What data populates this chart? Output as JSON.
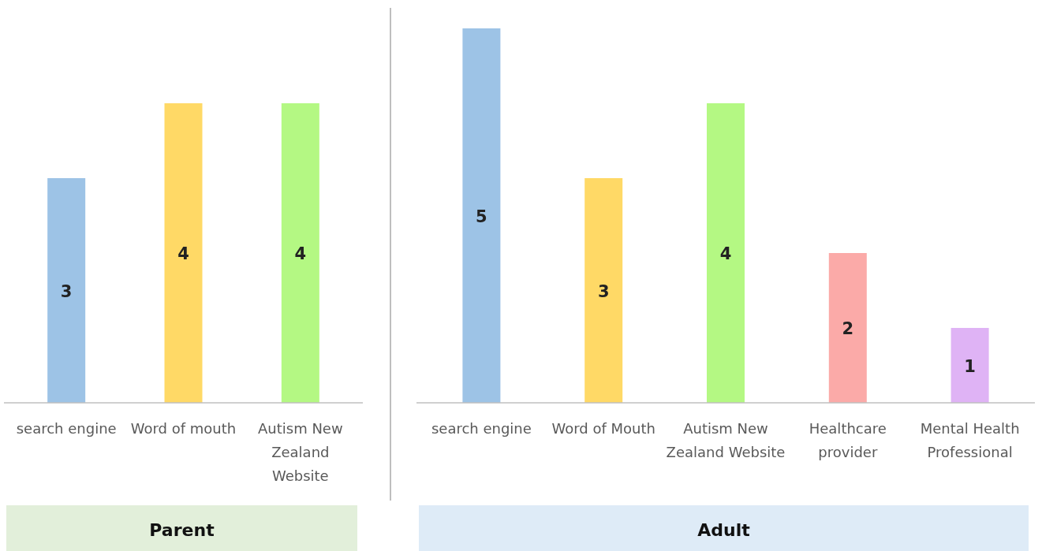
{
  "chart_data": [
    {
      "type": "bar",
      "title": "Parent",
      "categories": [
        "search engine",
        "Word of mouth",
        "Autism New Zealand Website"
      ],
      "values": [
        3,
        4,
        4
      ],
      "colors": [
        "#9dc3e6",
        "#ffd966",
        "#b4f883"
      ],
      "data_labels": true
    },
    {
      "type": "bar",
      "title": "Adult",
      "categories": [
        "search engine",
        "Word of Mouth",
        "Autism New Zealand Website",
        "Healthcare provider",
        "Mental Health Professional"
      ],
      "values": [
        5,
        3,
        4,
        2,
        1
      ],
      "colors": [
        "#9dc3e6",
        "#ffd966",
        "#b4f883",
        "#fbaaa8",
        "#dfb3f5"
      ],
      "data_labels": true
    }
  ]
}
